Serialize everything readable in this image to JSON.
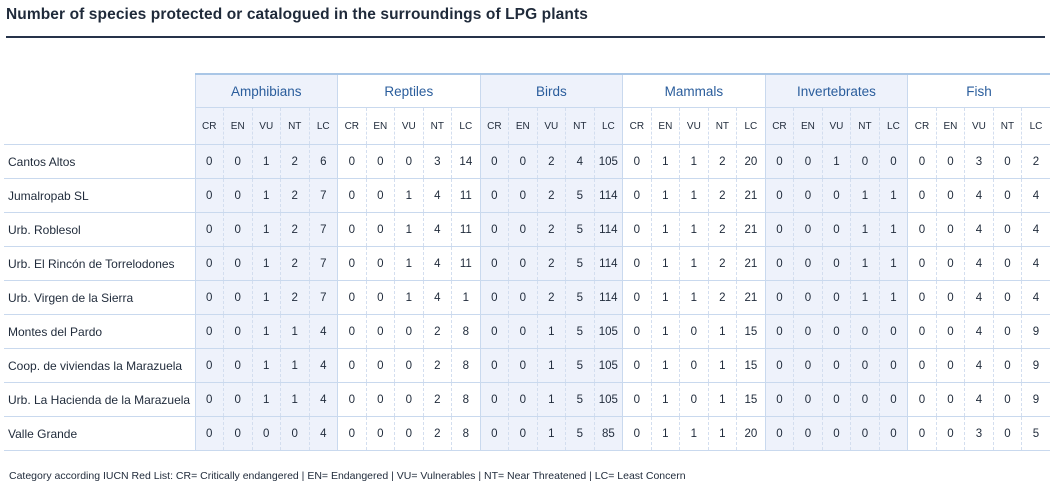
{
  "title": "Number of species protected or catalogued in the surroundings of LPG plants",
  "groups": [
    "Amphibians",
    "Reptiles",
    "Birds",
    "Mammals",
    "Invertebrates",
    "Fish"
  ],
  "categories": [
    "CR",
    "EN",
    "VU",
    "NT",
    "LC"
  ],
  "rows": [
    {
      "name": "Cantos Altos",
      "values": [
        "0",
        "0",
        "1",
        "2",
        "6",
        "0",
        "0",
        "0",
        "3",
        "14",
        "0",
        "0",
        "2",
        "4",
        "105",
        "0",
        "1",
        "1",
        "2",
        "20",
        "0",
        "0",
        "1",
        "0",
        "0",
        "0",
        "0",
        "3",
        "0",
        "2"
      ]
    },
    {
      "name": "Jumalropab SL",
      "values": [
        "0",
        "0",
        "1",
        "2",
        "7",
        "0",
        "0",
        "1",
        "4",
        "11",
        "0",
        "0",
        "2",
        "5",
        "114",
        "0",
        "1",
        "1",
        "2",
        "21",
        "0",
        "0",
        "0",
        "1",
        "1",
        "0",
        "0",
        "4",
        "0",
        "4"
      ]
    },
    {
      "name": "Urb. Roblesol",
      "values": [
        "0",
        "0",
        "1",
        "2",
        "7",
        "0",
        "0",
        "1",
        "4",
        "11",
        "0",
        "0",
        "2",
        "5",
        "114",
        "0",
        "1",
        "1",
        "2",
        "21",
        "0",
        "0",
        "0",
        "1",
        "1",
        "0",
        "0",
        "4",
        "0",
        "4"
      ]
    },
    {
      "name": "Urb. El Rincón de Torrelodones",
      "values": [
        "0",
        "0",
        "1",
        "2",
        "7",
        "0",
        "0",
        "1",
        "4",
        "11",
        "0",
        "0",
        "2",
        "5",
        "114",
        "0",
        "1",
        "1",
        "2",
        "21",
        "0",
        "0",
        "0",
        "1",
        "1",
        "0",
        "0",
        "4",
        "0",
        "4"
      ]
    },
    {
      "name": "Urb. Virgen de la Sierra",
      "values": [
        "0",
        "0",
        "1",
        "2",
        "7",
        "0",
        "0",
        "1",
        "4",
        "1",
        "0",
        "0",
        "2",
        "5",
        "114",
        "0",
        "1",
        "1",
        "2",
        "21",
        "0",
        "0",
        "0",
        "1",
        "1",
        "0",
        "0",
        "4",
        "0",
        "4"
      ]
    },
    {
      "name": "Montes del Pardo",
      "values": [
        "0",
        "0",
        "1",
        "1",
        "4",
        "0",
        "0",
        "0",
        "2",
        "8",
        "0",
        "0",
        "1",
        "5",
        "105",
        "0",
        "1",
        "0",
        "1",
        "15",
        "0",
        "0",
        "0",
        "0",
        "0",
        "0",
        "0",
        "4",
        "0",
        "9"
      ]
    },
    {
      "name": "Coop. de viviendas la Marazuela",
      "values": [
        "0",
        "0",
        "1",
        "1",
        "4",
        "0",
        "0",
        "0",
        "2",
        "8",
        "0",
        "0",
        "1",
        "5",
        "105",
        "0",
        "1",
        "0",
        "1",
        "15",
        "0",
        "0",
        "0",
        "0",
        "0",
        "0",
        "0",
        "4",
        "0",
        "9"
      ]
    },
    {
      "name": "Urb. La Hacienda de la Marazuela",
      "values": [
        "0",
        "0",
        "1",
        "1",
        "4",
        "0",
        "0",
        "0",
        "2",
        "8",
        "0",
        "0",
        "1",
        "5",
        "105",
        "0",
        "1",
        "0",
        "1",
        "15",
        "0",
        "0",
        "0",
        "0",
        "0",
        "0",
        "0",
        "4",
        "0",
        "9"
      ]
    },
    {
      "name": "Valle Grande",
      "values": [
        "0",
        "0",
        "0",
        "0",
        "4",
        "0",
        "0",
        "0",
        "2",
        "8",
        "0",
        "0",
        "1",
        "5",
        "85",
        "0",
        "1",
        "1",
        "1",
        "20",
        "0",
        "0",
        "0",
        "0",
        "0",
        "0",
        "0",
        "3",
        "0",
        "5"
      ]
    }
  ],
  "legend": "Category according IUCN Red List:  CR= Critically endangered  |  EN= Endangered  |  VU= Vulnerables  |  NT= Near Threatened  |  LC= Least Concern"
}
